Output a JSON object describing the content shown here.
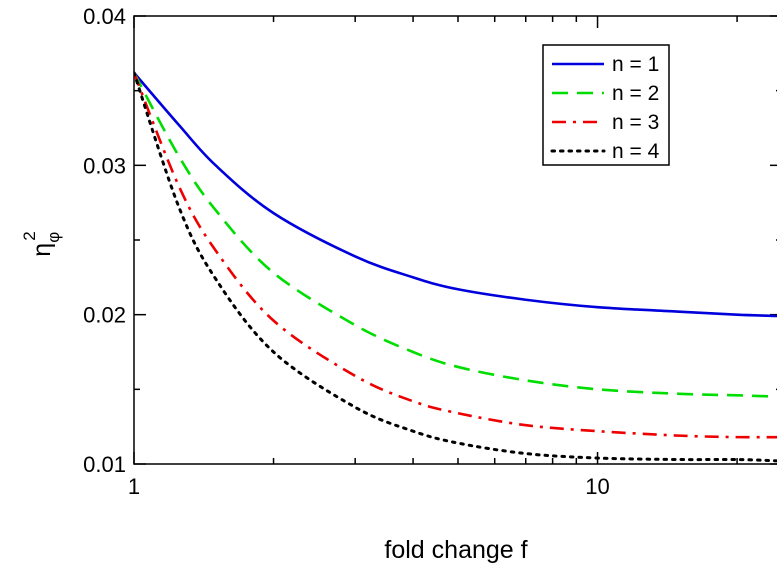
{
  "chart_data": {
    "type": "line",
    "xlabel": "fold change f",
    "ylabel": {
      "base": "η",
      "subscript": "φ",
      "superscript": "2"
    },
    "xscale": "log",
    "xlim": [
      1,
      25
    ],
    "ylim": [
      0.01,
      0.04
    ],
    "x_ticks": [
      {
        "value": 1,
        "label": "1"
      },
      {
        "value": 10,
        "label": "10"
      }
    ],
    "y_ticks": [
      {
        "value": 0.01,
        "label": "0.01"
      },
      {
        "value": 0.02,
        "label": "0.02"
      },
      {
        "value": 0.03,
        "label": "0.03"
      },
      {
        "value": 0.04,
        "label": "0.04"
      }
    ],
    "grid": false,
    "legend_position": "top-right",
    "x": [
      1,
      1.25,
      1.5,
      2,
      3,
      4,
      5,
      7,
      10,
      15,
      20,
      25
    ],
    "series": [
      {
        "name": "n = 1",
        "color": "#0000dd",
        "style": "solid",
        "values": [
          0.0362,
          0.0327,
          0.03,
          0.0268,
          0.0239,
          0.0225,
          0.0217,
          0.021,
          0.0205,
          0.0202,
          0.02,
          0.0199
        ]
      },
      {
        "name": "n = 2",
        "color": "#00dd00",
        "style": "dashed",
        "values": [
          0.0362,
          0.0306,
          0.027,
          0.0228,
          0.0193,
          0.0175,
          0.0165,
          0.0156,
          0.015,
          0.0147,
          0.0146,
          0.0145
        ]
      },
      {
        "name": "n = 3",
        "color": "#ee0000",
        "style": "dashdot",
        "values": [
          0.0362,
          0.0286,
          0.0243,
          0.0196,
          0.0159,
          0.0142,
          0.0134,
          0.0126,
          0.0122,
          0.0119,
          0.0118,
          0.0118
        ]
      },
      {
        "name": "n = 4",
        "color": "#000000",
        "style": "dotted",
        "values": [
          0.0362,
          0.0272,
          0.0224,
          0.0175,
          0.0138,
          0.0122,
          0.0114,
          0.0107,
          0.0104,
          0.0103,
          0.0103,
          0.0102
        ]
      }
    ]
  }
}
